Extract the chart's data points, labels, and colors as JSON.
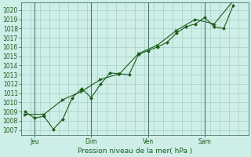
{
  "title": "Pression niveau de la mer( hPa )",
  "ylabel_values": [
    1007,
    1008,
    1009,
    1010,
    1011,
    1012,
    1013,
    1014,
    1015,
    1016,
    1017,
    1018,
    1019,
    1020
  ],
  "ylim": [
    1006.5,
    1020.8
  ],
  "xlim": [
    -0.2,
    11.8
  ],
  "background_color": "#ceeee8",
  "grid_color_major": "#aaccc4",
  "grid_color_minor": "#bbddd6",
  "line_color": "#1a5c1a",
  "x_tick_labels": [
    "Jeu",
    "Dim",
    "Ven",
    "Sam"
  ],
  "x_tick_positions": [
    0.5,
    3.5,
    6.5,
    9.5
  ],
  "x_vline_positions": [
    0.5,
    3.5,
    6.5,
    9.5
  ],
  "line1_x": [
    0.0,
    0.5,
    1.0,
    1.5,
    2.0,
    2.5,
    3.0,
    3.5,
    4.0,
    4.5,
    5.0,
    5.5,
    6.0,
    6.5,
    7.0,
    7.5,
    8.0,
    8.5,
    9.0,
    9.5,
    10.0,
    10.5,
    11.0
  ],
  "line1_y": [
    1009.0,
    1008.3,
    1008.5,
    1007.1,
    1008.2,
    1010.5,
    1011.5,
    1010.5,
    1012.0,
    1013.2,
    1013.1,
    1013.0,
    1015.2,
    1015.6,
    1016.0,
    1016.5,
    1017.5,
    1018.2,
    1018.5,
    1019.2,
    1018.2,
    1018.0,
    1020.5
  ],
  "line2_x": [
    0.0,
    1.0,
    2.0,
    3.0,
    4.0,
    5.0,
    6.0,
    7.0,
    8.0,
    9.0,
    10.0,
    11.0
  ],
  "line2_y": [
    1008.7,
    1008.7,
    1010.3,
    1011.2,
    1012.5,
    1013.1,
    1015.3,
    1016.2,
    1017.8,
    1019.0,
    1018.5,
    1021.0
  ],
  "title_fontsize": 6.5,
  "tick_fontsize": 5.5
}
